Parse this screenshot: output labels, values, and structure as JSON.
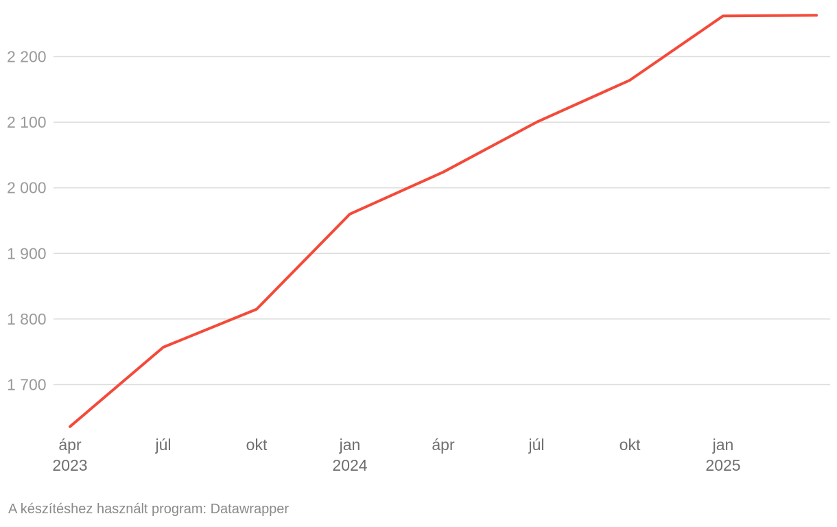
{
  "chart_data": {
    "type": "line",
    "x": [
      "2023-04",
      "2023-07",
      "2023-10",
      "2024-01",
      "2024-04",
      "2024-07",
      "2024-10",
      "2025-01",
      "2025-04"
    ],
    "series": [
      {
        "values": [
          1636,
          1757,
          1815,
          1960,
          2024,
          2100,
          2164,
          2262,
          2263
        ]
      }
    ],
    "yticks": [
      1700,
      1800,
      1900,
      2000,
      2100,
      2200
    ],
    "ytick_labels": [
      "1 700",
      "1 800",
      "1 900",
      "2 000",
      "2 100",
      "2 200"
    ],
    "xtick_labels": [
      {
        "month": "ápr",
        "year": "2023"
      },
      {
        "month": "júl",
        "year": ""
      },
      {
        "month": "okt",
        "year": ""
      },
      {
        "month": "jan",
        "year": "2024"
      },
      {
        "month": "ápr",
        "year": ""
      },
      {
        "month": "júl",
        "year": ""
      },
      {
        "month": "okt",
        "year": ""
      },
      {
        "month": "jan",
        "year": "2025"
      }
    ],
    "ylim": [
      1636,
      2263
    ],
    "grid": true,
    "line_color": "#f34a3a"
  },
  "footer": "A készítéshez használt program: Datawrapper"
}
